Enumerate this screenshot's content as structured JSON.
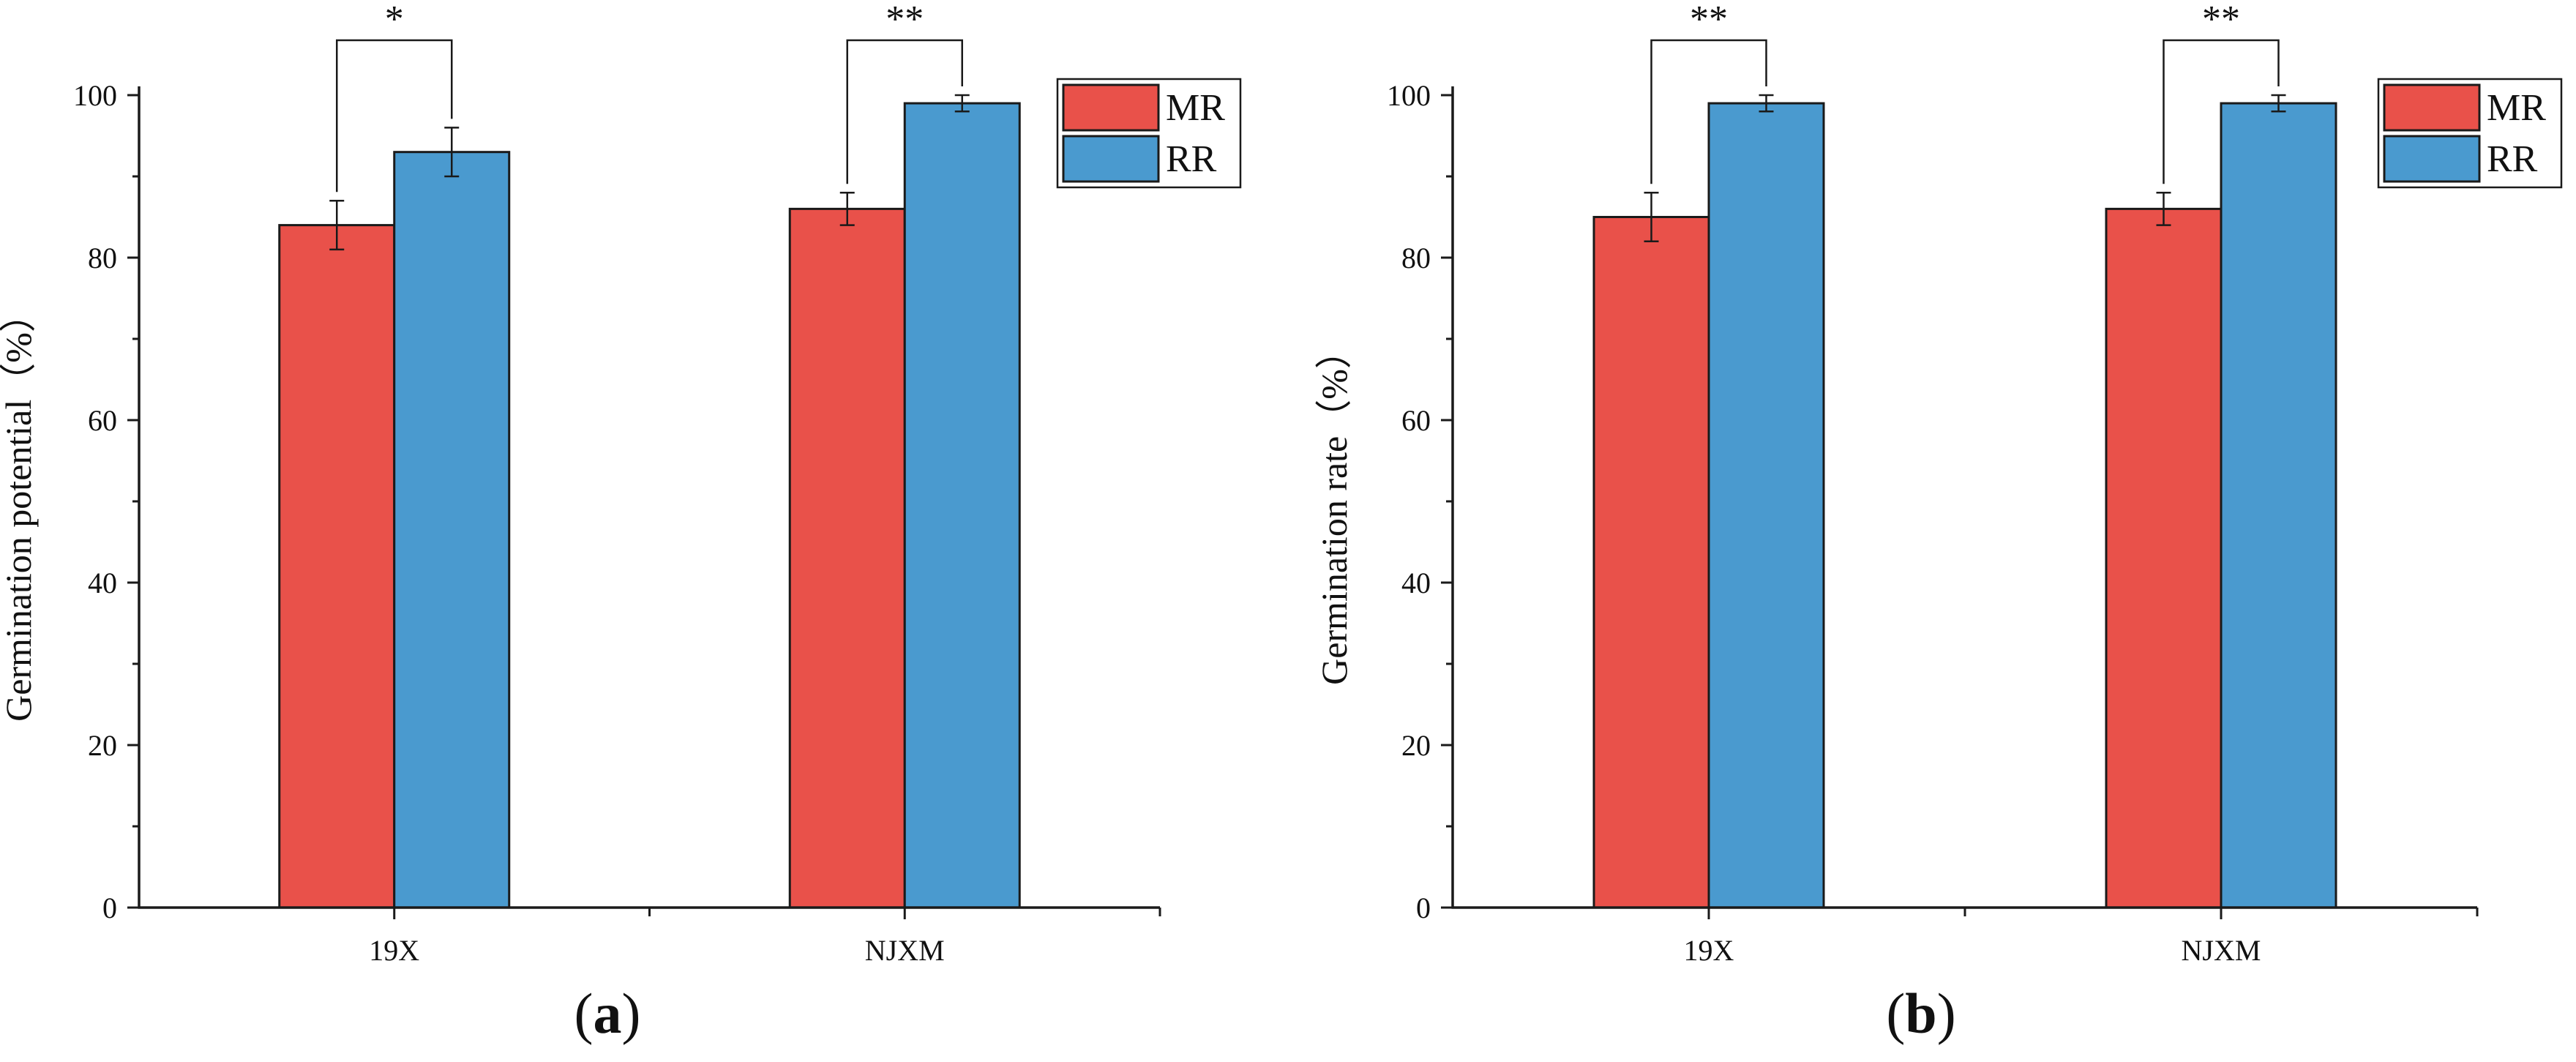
{
  "chart_data": [
    {
      "type": "bar",
      "panel": "a",
      "title": "",
      "caption_letter": "a",
      "xlabel": "",
      "ylabel": "Germination potential（%）",
      "categories": [
        "19X",
        "NJXM"
      ],
      "ylim": [
        0,
        100
      ],
      "yticks": [
        0,
        20,
        40,
        60,
        80,
        100
      ],
      "series": [
        {
          "name": "MR",
          "color": "#e9514a",
          "values": [
            84,
            86
          ],
          "errors": [
            3,
            2
          ]
        },
        {
          "name": "RR",
          "color": "#4a9acf",
          "values": [
            93,
            99
          ],
          "errors": [
            3,
            1
          ]
        }
      ],
      "significance": [
        "*",
        "**"
      ],
      "legend": "top-right"
    },
    {
      "type": "bar",
      "panel": "b",
      "title": "",
      "caption_letter": "b",
      "xlabel": "",
      "ylabel": "Germination rate（%）",
      "categories": [
        "19X",
        "NJXM"
      ],
      "ylim": [
        0,
        100
      ],
      "yticks": [
        0,
        20,
        40,
        60,
        80,
        100
      ],
      "series": [
        {
          "name": "MR",
          "color": "#e9514a",
          "values": [
            85,
            86
          ],
          "errors": [
            3,
            2
          ]
        },
        {
          "name": "RR",
          "color": "#4a9acf",
          "values": [
            99,
            99
          ],
          "errors": [
            1,
            1
          ]
        }
      ],
      "significance": [
        "**",
        "**"
      ],
      "legend": "top-right"
    }
  ]
}
